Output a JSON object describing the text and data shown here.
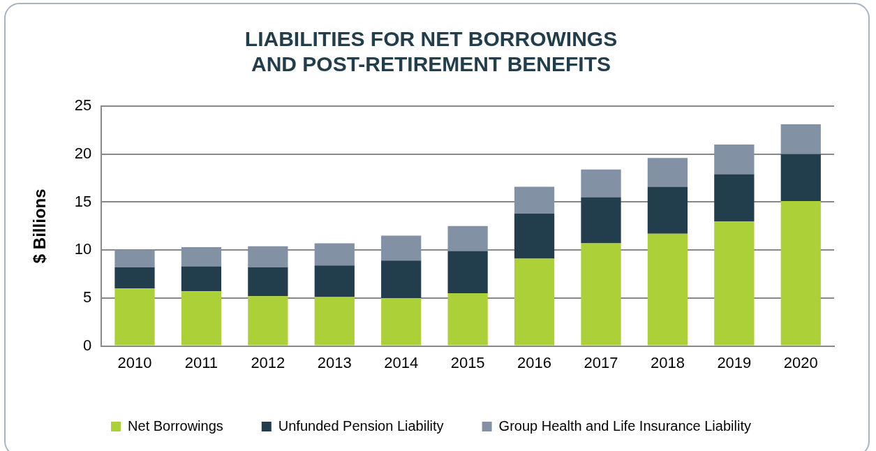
{
  "chart_data": {
    "type": "bar",
    "title": "LIABILITIES FOR NET BORROWINGS\nAND POST-RETIREMENT BENEFITS",
    "ylabel": "$ Billions",
    "categories": [
      "2010",
      "2011",
      "2012",
      "2013",
      "2014",
      "2015",
      "2016",
      "2017",
      "2018",
      "2019",
      "2020"
    ],
    "stacked": true,
    "series": [
      {
        "name": "Net Borrowings",
        "color": "#acd037",
        "values": [
          6.0,
          5.7,
          5.2,
          5.1,
          5.0,
          5.5,
          9.1,
          10.7,
          11.7,
          13.0,
          15.1
        ]
      },
      {
        "name": "Unfunded Pension Liability",
        "color": "#223d4b",
        "values": [
          2.2,
          2.6,
          3.0,
          3.3,
          3.9,
          4.4,
          4.7,
          4.8,
          4.9,
          4.9,
          4.9
        ]
      },
      {
        "name": "Group Health and Life Insurance Liability",
        "color": "#8292a4",
        "values": [
          1.8,
          2.0,
          2.2,
          2.3,
          2.6,
          2.6,
          2.8,
          2.9,
          3.0,
          3.1,
          3.1
        ]
      }
    ],
    "ylim": [
      0,
      25
    ],
    "yticks": [
      0,
      5,
      10,
      15,
      20,
      25
    ],
    "grid": "y",
    "legend": "bottom"
  }
}
